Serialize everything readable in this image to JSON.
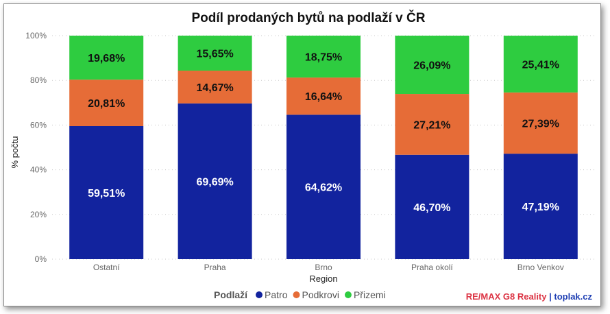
{
  "chart_data": {
    "type": "bar",
    "stacked": true,
    "title": "Podíl prodaných bytů na podlaží v ČR",
    "xlabel": "Region",
    "ylabel": "% počtu",
    "ylim": [
      0,
      100
    ],
    "yticks": [
      0,
      20,
      40,
      60,
      80,
      100
    ],
    "ytick_suffix": "%",
    "grid": true,
    "categories": [
      "Ostatní",
      "Praha",
      "Brno",
      "Praha okolí",
      "Brno Venkov"
    ],
    "series": [
      {
        "name": "Patro",
        "color": "#12239e",
        "label_color": "#ffffff",
        "values": [
          59.51,
          69.69,
          64.62,
          46.7,
          47.19
        ],
        "labels": [
          "59,51%",
          "69,69%",
          "64,62%",
          "46,70%",
          "47,19%"
        ]
      },
      {
        "name": "Podkrovi",
        "color": "#e66c37",
        "label_color": "#111111",
        "values": [
          20.81,
          14.67,
          16.64,
          27.21,
          27.39
        ],
        "labels": [
          "20,81%",
          "14,67%",
          "16,64%",
          "27,21%",
          "27,39%"
        ]
      },
      {
        "name": "Přizemi",
        "color": "#2ecc40",
        "label_color": "#111111",
        "values": [
          19.68,
          15.65,
          18.75,
          26.09,
          25.41
        ],
        "labels": [
          "19,68%",
          "15,65%",
          "18,75%",
          "26,09%",
          "25,41%"
        ]
      }
    ],
    "legend": {
      "title": "Podlaží",
      "position": "bottom-center"
    }
  },
  "brand": {
    "part1": "RE/MAX G8 Reality",
    "separator": " | ",
    "part2": "toplak.cz",
    "color1": "#dc3545",
    "color2": "#1f3fb3"
  }
}
